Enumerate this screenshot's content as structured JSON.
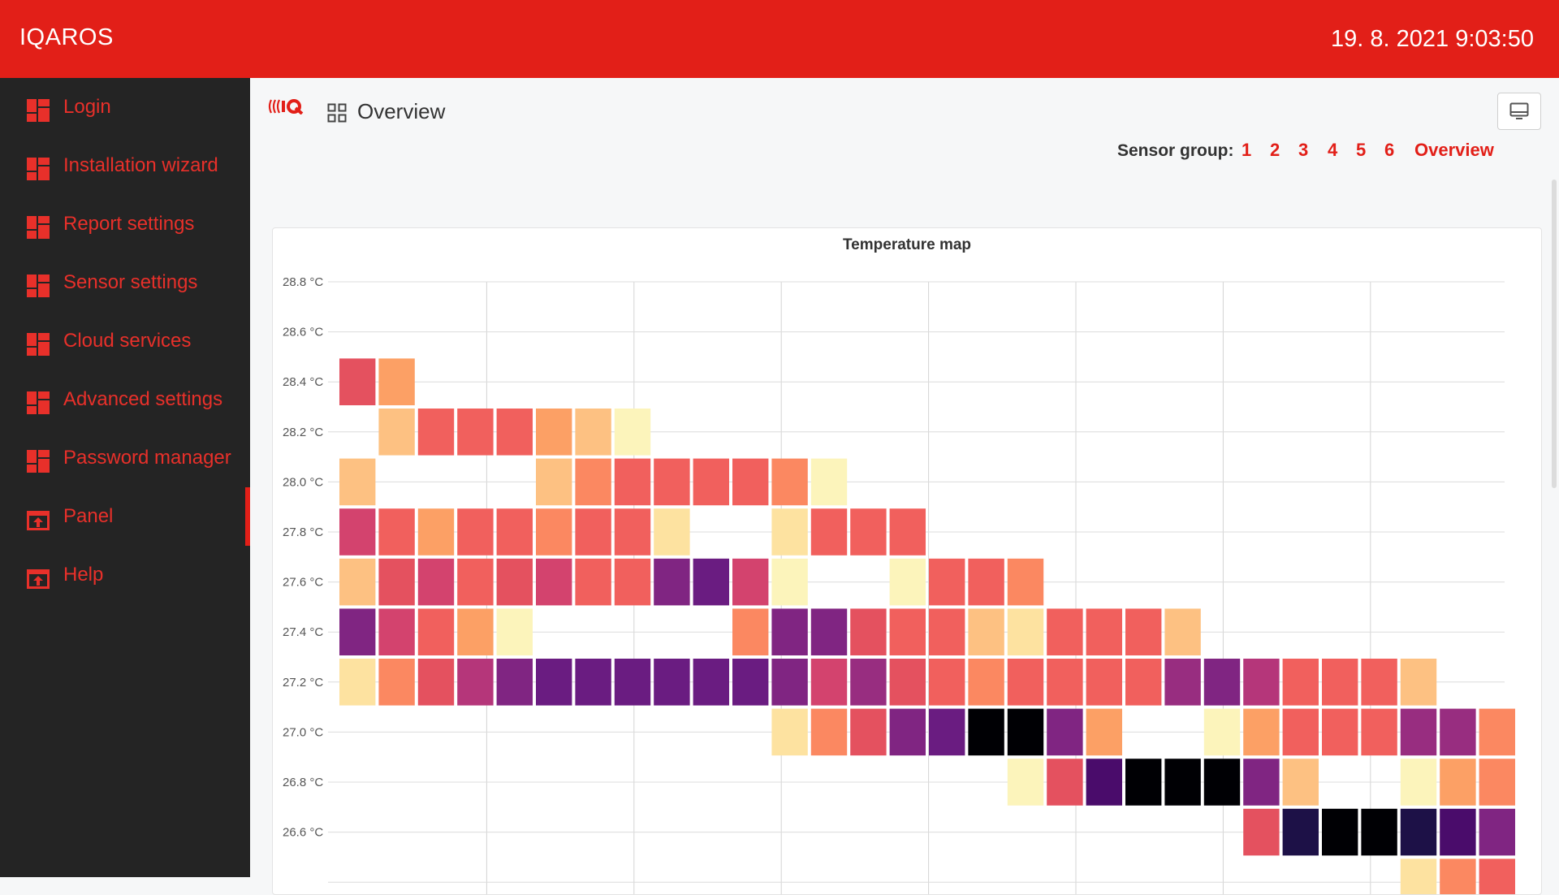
{
  "app": {
    "title": "IQAROS",
    "datetime": "19. 8. 2021 9:03:50"
  },
  "sidebar": {
    "items": [
      {
        "label": "Login",
        "icon": "dashboard-icon",
        "active": false
      },
      {
        "label": "Installation wizard",
        "icon": "dashboard-icon",
        "active": false
      },
      {
        "label": "Report settings",
        "icon": "dashboard-icon",
        "active": false
      },
      {
        "label": "Sensor settings",
        "icon": "dashboard-icon",
        "active": false
      },
      {
        "label": "Cloud services",
        "icon": "dashboard-icon",
        "active": false
      },
      {
        "label": "Advanced settings",
        "icon": "dashboard-icon",
        "active": false
      },
      {
        "label": "Password manager",
        "icon": "dashboard-icon",
        "active": false
      },
      {
        "label": "Panel",
        "icon": "panel-icon",
        "active": true
      },
      {
        "label": "Help",
        "icon": "panel-icon",
        "active": false
      }
    ]
  },
  "header": {
    "page_title": "Overview",
    "logo_icon": "iq-logo-icon",
    "title_icon": "grid-icon",
    "monitor_icon": "monitor-icon"
  },
  "sensor_group": {
    "label": "Sensor group:",
    "links": [
      "1",
      "2",
      "3",
      "4",
      "5",
      "6",
      "Overview"
    ]
  },
  "colors": {
    "accent": "#e21f18",
    "sidebar_bg": "#242424",
    "nav_text": "#e8302a"
  },
  "chart_data": {
    "type": "heatmap",
    "title": "Temperature map",
    "y_ticks": [
      "28.8 °C",
      "28.6 °C",
      "28.4 °C",
      "28.2 °C",
      "28.0 °C",
      "27.8 °C",
      "27.6 °C",
      "27.4 °C",
      "27.2 °C",
      "27.0 °C",
      "26.8 °C",
      "26.6 °C"
    ],
    "y_values": [
      28.8,
      28.6,
      28.4,
      28.2,
      28.0,
      27.8,
      27.6,
      27.4,
      27.2,
      27.0,
      26.8,
      26.6,
      26.4
    ],
    "columns": 30,
    "color_scale": [
      "#000004",
      "#1d1147",
      "#4a0c6b",
      "#6a1c81",
      "#802582",
      "#982d80",
      "#b5367a",
      "#d3436e",
      "#e4515f",
      "#f1605d",
      "#fb8861",
      "#fca065",
      "#fdc182",
      "#fde2a0",
      "#fcf4bb"
    ],
    "rows": [
      {
        "y": 28.4,
        "start": 0,
        "intensity": [
          8,
          11
        ]
      },
      {
        "y": 28.2,
        "start": 1,
        "intensity": [
          12,
          9,
          9,
          9,
          11,
          12,
          14
        ]
      },
      {
        "y": 28.0,
        "start": 0,
        "intensity": [
          12,
          -1,
          -1,
          -1,
          -1,
          12,
          10,
          9,
          9,
          9,
          9,
          10,
          14
        ]
      },
      {
        "y": 27.8,
        "start": 0,
        "intensity": [
          7,
          9,
          11,
          9,
          9,
          10,
          9,
          9,
          13,
          -1,
          -1,
          13,
          9,
          9,
          9
        ]
      },
      {
        "y": 27.6,
        "start": 0,
        "intensity": [
          12,
          8,
          7,
          9,
          8,
          7,
          9,
          9,
          4,
          3,
          7,
          14,
          -1,
          -1,
          14,
          9,
          9,
          10
        ]
      },
      {
        "y": 27.4,
        "start": 0,
        "intensity": [
          4,
          7,
          9,
          11,
          14,
          -1,
          -1,
          -1,
          -1,
          -1,
          10,
          4,
          4,
          8,
          9,
          9,
          12,
          13,
          9,
          9,
          9,
          12
        ]
      },
      {
        "y": 27.2,
        "start": 0,
        "intensity": [
          13,
          10,
          8,
          6,
          4,
          3,
          3,
          3,
          3,
          3,
          3,
          4,
          7,
          5,
          8,
          9,
          10,
          9,
          9,
          9,
          9,
          5,
          4,
          6,
          9,
          9,
          9,
          12
        ]
      },
      {
        "y": 27.0,
        "start": 11,
        "intensity": [
          13,
          10,
          8,
          4,
          3,
          0,
          0,
          4,
          11,
          -1,
          -1,
          14,
          11,
          9,
          9,
          9,
          5,
          5,
          10
        ]
      },
      {
        "y": 26.8,
        "start": 17,
        "intensity": [
          14,
          8,
          2,
          0,
          0,
          0,
          4,
          12,
          -1,
          -1,
          14,
          11,
          10
        ]
      },
      {
        "y": 26.6,
        "start": 23,
        "intensity": [
          8,
          1,
          0,
          0,
          1,
          2,
          4
        ]
      },
      {
        "y": 26.4,
        "start": 27,
        "intensity": [
          13,
          10,
          9
        ]
      }
    ]
  }
}
